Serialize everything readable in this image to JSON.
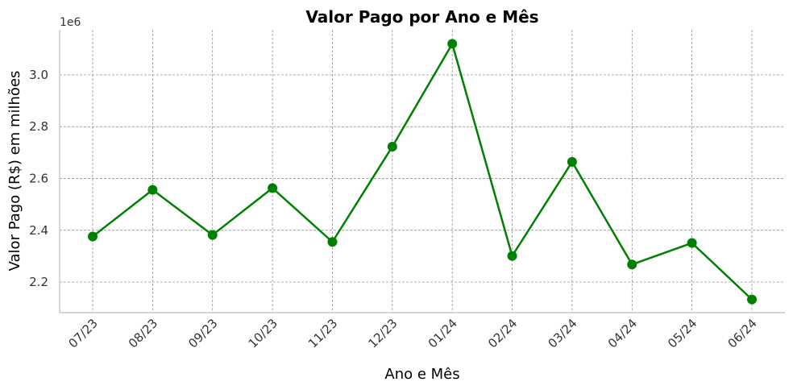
{
  "chart_data": {
    "type": "line",
    "title": "Valor Pago por Ano e Mês",
    "xlabel": "Ano e Mês",
    "ylabel": "Valor Pago (R$) em milhões",
    "y_offset_label": "1e6",
    "categories": [
      "07/23",
      "08/23",
      "09/23",
      "10/23",
      "11/23",
      "12/23",
      "01/24",
      "02/24",
      "03/24",
      "04/24",
      "05/24",
      "06/24"
    ],
    "series": [
      {
        "values": [
          2376000,
          2556000,
          2382000,
          2563000,
          2355000,
          2723000,
          3120000,
          2301000,
          2664000,
          2268000,
          2351000,
          2133000
        ]
      }
    ],
    "yticks": [
      2.2,
      2.4,
      2.6,
      2.8,
      3.0
    ],
    "ytick_labels": [
      "2.2",
      "2.4",
      "2.6",
      "2.8",
      "3.0"
    ],
    "ylim": [
      2082000,
      3174000
    ],
    "grid": true,
    "line_color": "#008000"
  }
}
